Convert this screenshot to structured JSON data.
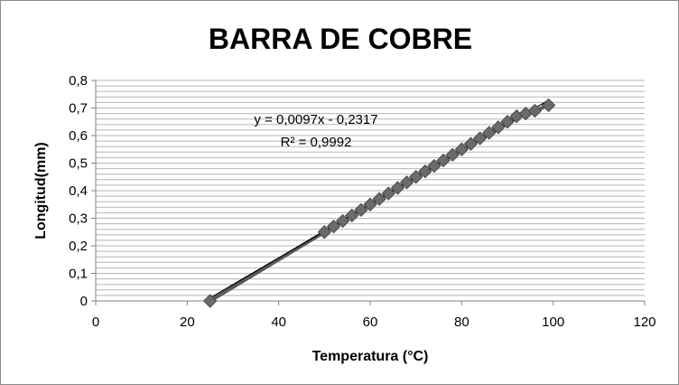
{
  "chart_data": {
    "type": "scatter",
    "title": "BARRA DE COBRE",
    "xlabel": "Temperatura (°C)",
    "ylabel": "Longitud(mm)",
    "xlim": [
      0,
      120
    ],
    "ylim": [
      0,
      0.8
    ],
    "x_ticks": [
      "0",
      "20",
      "40",
      "60",
      "80",
      "100",
      "120"
    ],
    "y_ticks": [
      "0",
      "0,1",
      "0,2",
      "0,3",
      "0,4",
      "0,5",
      "0,6",
      "0,7",
      "0,8"
    ],
    "grid": "horizontal",
    "marker": "diamond",
    "marker_color": "#6b6b6b",
    "trendline_color": "#000000",
    "series": [
      {
        "x": [
          25,
          50,
          52,
          54,
          56,
          58,
          60,
          62,
          64,
          66,
          68,
          70,
          72,
          74,
          76,
          78,
          80,
          82,
          84,
          86,
          88,
          90,
          92,
          94,
          96,
          99
        ],
        "y": [
          0,
          0.25,
          0.27,
          0.29,
          0.31,
          0.33,
          0.35,
          0.37,
          0.39,
          0.41,
          0.43,
          0.45,
          0.47,
          0.49,
          0.51,
          0.53,
          0.55,
          0.57,
          0.59,
          0.61,
          0.63,
          0.65,
          0.67,
          0.68,
          0.69,
          0.71
        ]
      }
    ],
    "trendline": {
      "slope": 0.0097,
      "intercept": -0.2317,
      "x_range": [
        25,
        99
      ],
      "equation_label": "y = 0,0097x - 0,2317",
      "r2_label": "R² = 0,9992"
    }
  }
}
